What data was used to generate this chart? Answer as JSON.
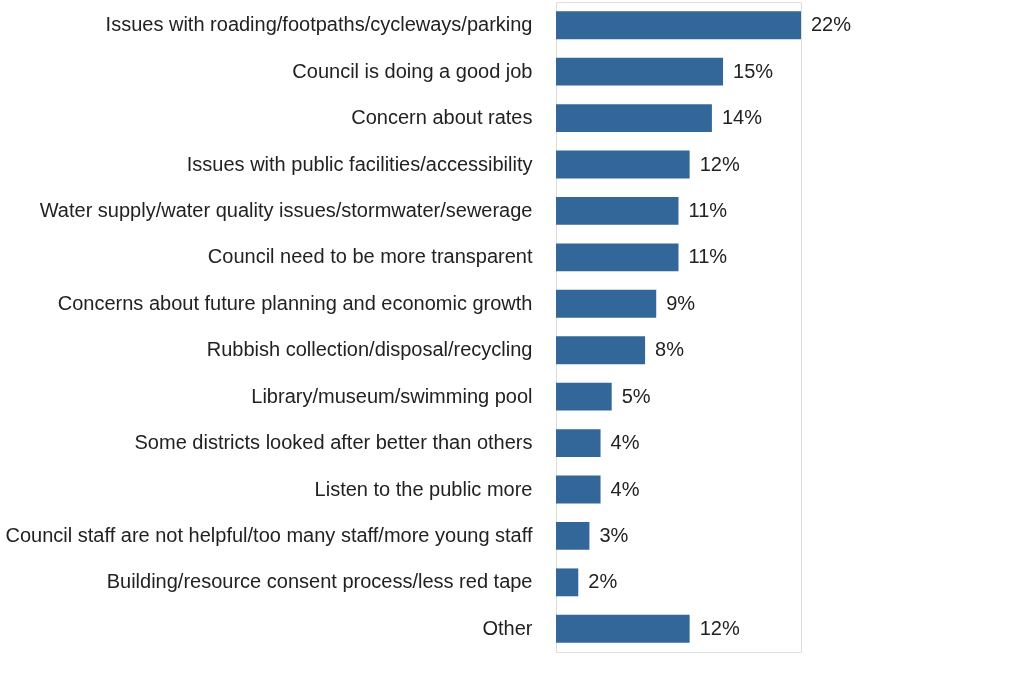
{
  "chart_data": {
    "type": "bar",
    "orientation": "horizontal",
    "data_labels": false,
    "categories": [
      "Issues with roading/footpaths/cycleways/parking",
      "Council is doing a good job",
      "Concern about rates",
      "Issues with public facilities/accessibility",
      "Water supply/water quality issues/stormwater/sewerage",
      "Council need to be more transparent",
      "Concerns about future planning and economic growth",
      "Rubbish collection/disposal/recycling",
      "Library/museum/swimming pool",
      "Some districts looked after better than others",
      "Listen to the public more",
      "Council staff are not helpful/too many staff/more young staff",
      "Building/resource consent process/less red tape",
      "Other"
    ],
    "values": [
      22,
      15,
      14,
      12,
      11,
      11,
      9,
      8,
      5,
      4,
      4,
      3,
      2,
      12
    ],
    "value_labels": [
      "22%",
      "15%",
      "14%",
      "12%",
      "11%",
      "11%",
      "9%",
      "8%",
      "5%",
      "4%",
      "4%",
      "3%",
      "2%",
      "12%"
    ],
    "color": "#336699"
  }
}
